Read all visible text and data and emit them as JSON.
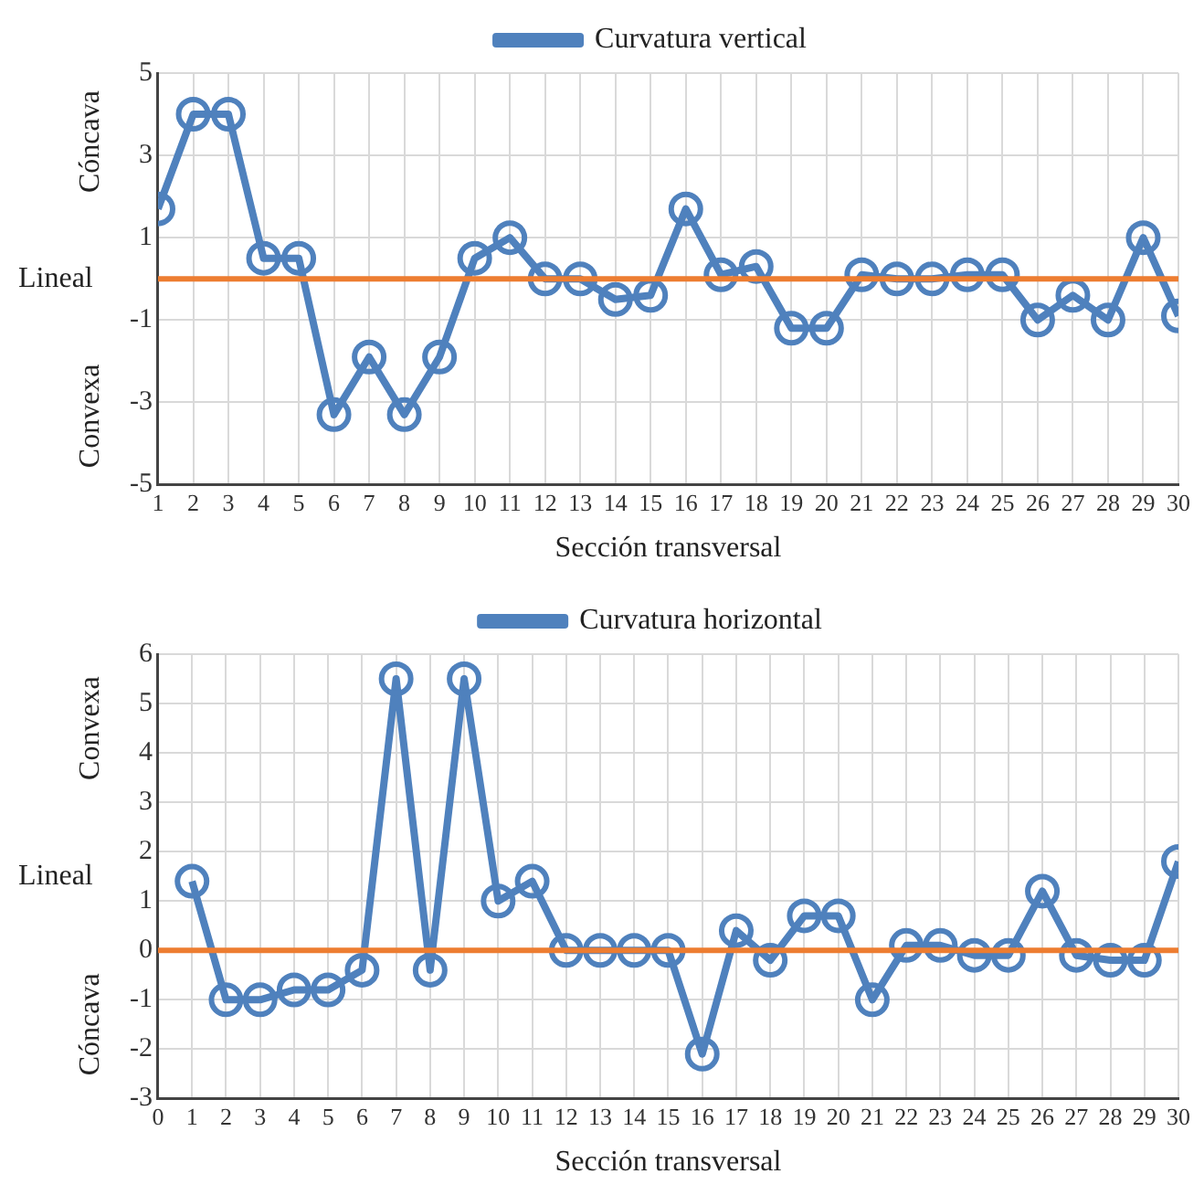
{
  "chart_data": [
    {
      "type": "line",
      "xlabel": "Sección transversal",
      "x": [
        1,
        2,
        3,
        4,
        5,
        6,
        7,
        8,
        9,
        10,
        11,
        12,
        13,
        14,
        15,
        16,
        17,
        18,
        19,
        20,
        21,
        22,
        23,
        24,
        25,
        26,
        27,
        28,
        29,
        30
      ],
      "series": [
        {
          "name": "Curvatura vertical",
          "color": "#4f81bd",
          "values": [
            1.7,
            4.0,
            4.0,
            0.5,
            0.5,
            -3.3,
            -1.9,
            -3.3,
            -1.9,
            0.5,
            1.0,
            0.0,
            0.0,
            -0.5,
            -0.4,
            1.7,
            0.1,
            0.3,
            -1.2,
            -1.2,
            0.1,
            0.0,
            0.0,
            0.1,
            0.1,
            -1.0,
            -0.4,
            -1.0,
            1.0,
            -0.9
          ]
        }
      ],
      "xlim": [
        1,
        30
      ],
      "xticks": [
        1,
        2,
        3,
        4,
        5,
        6,
        7,
        8,
        9,
        10,
        11,
        12,
        13,
        14,
        15,
        16,
        17,
        18,
        19,
        20,
        21,
        22,
        23,
        24,
        25,
        26,
        27,
        28,
        29,
        30
      ],
      "ylim": [
        -5,
        5
      ],
      "yticks": [
        -5,
        -3,
        -1,
        1,
        3,
        5
      ],
      "grid": true,
      "legend": "top",
      "marker": "circle",
      "line_style": "solid",
      "ref_lines": [
        {
          "axis": "y",
          "value": 0,
          "color": "#ed7d31"
        }
      ],
      "annotations": [
        "Cóncava",
        "Lineal",
        "Convexa"
      ]
    },
    {
      "type": "line",
      "xlabel": "Sección transversal",
      "x": [
        1,
        2,
        3,
        4,
        5,
        6,
        7,
        8,
        9,
        10,
        11,
        12,
        13,
        14,
        15,
        16,
        17,
        18,
        19,
        20,
        21,
        22,
        23,
        24,
        25,
        26,
        27,
        28,
        29,
        30
      ],
      "series": [
        {
          "name": "Curvatura horizontal",
          "color": "#4f81bd",
          "values": [
            1.4,
            -1.0,
            -1.0,
            -0.8,
            -0.8,
            -0.4,
            5.5,
            -0.4,
            5.5,
            1.0,
            1.4,
            0.0,
            0.0,
            0.0,
            0.0,
            -2.1,
            0.4,
            -0.2,
            0.7,
            0.7,
            -1.0,
            0.1,
            0.1,
            -0.1,
            -0.1,
            1.2,
            -0.1,
            -0.2,
            -0.2,
            1.8
          ]
        }
      ],
      "xlim": [
        0,
        30
      ],
      "xticks": [
        0,
        1,
        2,
        3,
        4,
        5,
        6,
        7,
        8,
        9,
        10,
        11,
        12,
        13,
        14,
        15,
        16,
        17,
        18,
        19,
        20,
        21,
        22,
        23,
        24,
        25,
        26,
        27,
        28,
        29,
        30
      ],
      "ylim": [
        -3,
        6
      ],
      "yticks": [
        -3,
        -2,
        -1,
        0,
        1,
        2,
        3,
        4,
        5,
        6
      ],
      "grid": true,
      "legend": "top",
      "marker": "circle",
      "line_style": "solid",
      "ref_lines": [
        {
          "axis": "y",
          "value": 0,
          "color": "#ed7d31"
        }
      ],
      "annotations": [
        "Convexa",
        "Lineal",
        "Cóncava"
      ]
    }
  ]
}
